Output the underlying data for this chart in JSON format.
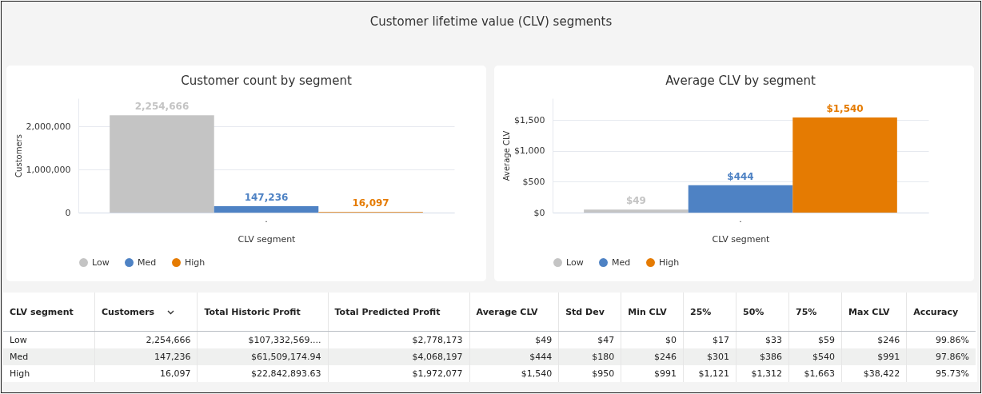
{
  "chart_data": [
    {
      "type": "other",
      "title": "Customer lifetime value (CLV) segments"
    },
    {
      "type": "bar",
      "title": "Customer count by segment",
      "xlabel": "CLV segment",
      "ylabel": "Customers",
      "categories": [
        "."
      ],
      "series": [
        {
          "name": "Low",
          "color": "#c4c4c4",
          "values": [
            2254666
          ],
          "value_labels": [
            "2,254,666"
          ]
        },
        {
          "name": "Med",
          "color": "#4e82c4",
          "values": [
            147236
          ],
          "value_labels": [
            "147,236"
          ]
        },
        {
          "name": "High",
          "color": "#e57b02",
          "values": [
            16097
          ],
          "value_labels": [
            "16,097"
          ]
        }
      ],
      "ylim": [
        0,
        2650000
      ],
      "yticks": [
        0,
        {
          "value": 1000000,
          "label": "1,000,000"
        },
        {
          "value": 2000000,
          "label": "2,000,000"
        }
      ],
      "grid": "y",
      "legend": "bottom"
    },
    {
      "type": "bar",
      "title": "Average CLV by segment",
      "xlabel": "CLV segment",
      "ylabel": "Average CLV",
      "categories": [
        "."
      ],
      "series": [
        {
          "name": "Low",
          "color": "#c4c4c4",
          "values": [
            49
          ],
          "value_labels": [
            "$49"
          ]
        },
        {
          "name": "Med",
          "color": "#4e82c4",
          "values": [
            444
          ],
          "value_labels": [
            "$444"
          ]
        },
        {
          "name": "High",
          "color": "#e57b02",
          "values": [
            1540
          ],
          "value_labels": [
            "$1,540"
          ]
        }
      ],
      "ylim": [
        0,
        1850
      ],
      "yticks": [
        {
          "value": 0,
          "label": "$0"
        },
        {
          "value": 500,
          "label": "$500"
        },
        {
          "value": 1000,
          "label": "$1,000"
        },
        {
          "value": 1500,
          "label": "$1,500"
        }
      ],
      "grid": "y",
      "legend": "bottom"
    },
    {
      "type": "other",
      "categories": [
        "CLV segment",
        "Customers",
        "Total Historic Profit",
        "Total Predicted Profit",
        "Average CLV",
        "Std Dev",
        "Min CLV",
        "25%",
        "50%",
        "75%",
        "Max CLV",
        "Accuracy"
      ],
      "cell_labels": [
        [
          "Low",
          "2,254,666",
          "$107,332,569....",
          "$2,778,173",
          "$49",
          "$47",
          "$0",
          "$17",
          "$33",
          "$59",
          "$246",
          "99.86%"
        ],
        [
          "Med",
          "147,236",
          "$61,509,174.94",
          "$4,068,197",
          "$444",
          "$180",
          "$246",
          "$301",
          "$386",
          "$540",
          "$991",
          "97.86%"
        ],
        [
          "High",
          "16,097",
          "$22,842,893.63",
          "$1,972,077",
          "$1,540",
          "$950",
          "$991",
          "$1,121",
          "$1,312",
          "$1,663",
          "$38,422",
          "95.73%"
        ]
      ]
    }
  ]
}
